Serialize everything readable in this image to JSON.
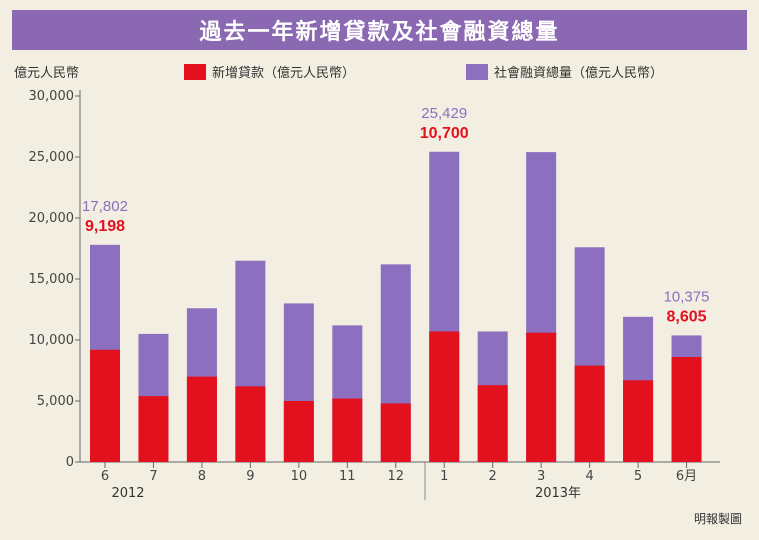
{
  "chart_data": {
    "type": "bar",
    "title": "過去一年新增貸款及社會融資總量",
    "ylabel": "億元人民幣",
    "ylim": [
      0,
      30000
    ],
    "yticks": [
      0,
      5000,
      10000,
      15000,
      20000,
      25000,
      30000
    ],
    "ytick_labels": [
      "0",
      "5,000",
      "10,000",
      "15,000",
      "20,000",
      "25,000",
      "30,000"
    ],
    "categories": [
      "6",
      "7",
      "8",
      "9",
      "10",
      "11",
      "12",
      "1",
      "2",
      "3",
      "4",
      "5",
      "6月"
    ],
    "year_groups": [
      {
        "label": "2012",
        "start": 0,
        "end": 6
      },
      {
        "label": "2013年",
        "start": 7,
        "end": 12
      }
    ],
    "series": [
      {
        "name": "社會融資總量（億元人民幣）",
        "color": "#8d6fc0",
        "values": [
          17802,
          10500,
          12600,
          16500,
          13000,
          11200,
          16200,
          25429,
          10700,
          25400,
          17600,
          11900,
          10375
        ]
      },
      {
        "name": "新增貸款（億元人民幣）",
        "color": "#e3101e",
        "values": [
          9198,
          5400,
          7000,
          6200,
          5000,
          5200,
          4800,
          10700,
          6300,
          10600,
          7900,
          6700,
          8605
        ]
      }
    ],
    "annotations": [
      {
        "index": 0,
        "total": "17,802",
        "loan": "9,198"
      },
      {
        "index": 7,
        "total": "25,429",
        "loan": "10,700"
      },
      {
        "index": 12,
        "total": "10,375",
        "loan": "8,605"
      }
    ],
    "legend": "top",
    "grid": false
  },
  "source_credit": "明報製圖"
}
